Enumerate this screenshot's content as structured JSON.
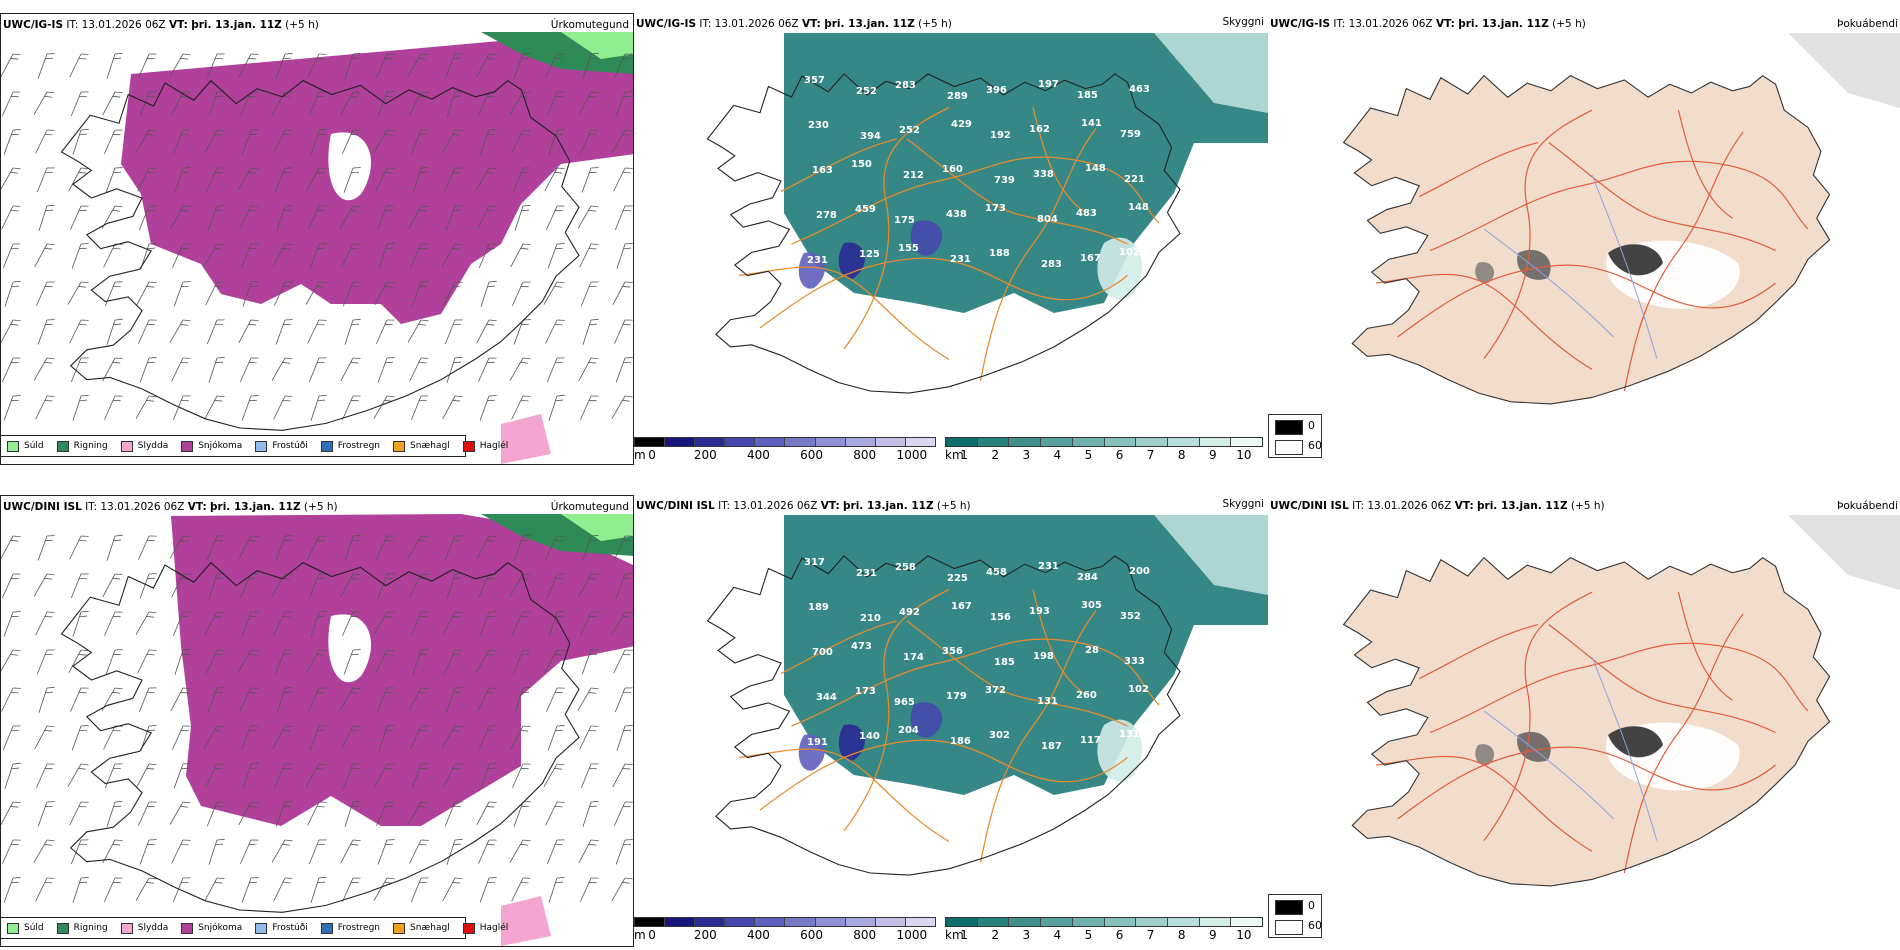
{
  "rows": [
    {
      "model": "UWC/IG-IS",
      "it_label": "IT:",
      "it_value": "13.01.2026 06Z",
      "vt_label": "VT:",
      "vt_value": "þri. 13.jan. 11Z",
      "offset": "(+5 h)"
    },
    {
      "model": "UWC/DINI ISL",
      "it_label": "IT:",
      "it_value": "13.01.2026 06Z",
      "vt_label": "VT:",
      "vt_value": "þri. 13.jan. 11Z",
      "offset": "(+5 h)"
    }
  ],
  "panel_titles": {
    "precip": "Úrkomutegund",
    "cloud": "Skyggni",
    "fog": "Þokuábendi"
  },
  "precip_legend": [
    {
      "label": "Súld",
      "color": "#90ee90"
    },
    {
      "label": "Rigning",
      "color": "#2e8b57"
    },
    {
      "label": "Slydda",
      "color": "#f4a6d0"
    },
    {
      "label": "Snjókoma",
      "color": "#b0409a"
    },
    {
      "label": "Frostúði",
      "color": "#8fbce8"
    },
    {
      "label": "Frostregn",
      "color": "#2f6fb5"
    },
    {
      "label": "Snæhagl",
      "color": "#f0a020"
    },
    {
      "label": "Haglél",
      "color": "#e01010"
    }
  ],
  "ceiling_bar": {
    "unit": "m",
    "ticks": [
      "0",
      "200",
      "400",
      "600",
      "800",
      "1000"
    ],
    "colors": [
      "#000000",
      "#16167a",
      "#2a2a95",
      "#4545ae",
      "#5f5fbd",
      "#7878c8",
      "#9090d2",
      "#a8a8dc",
      "#c0c0e6",
      "#d8d8f0"
    ]
  },
  "visibility_bar": {
    "unit": "km",
    "ticks": [
      "1",
      "2",
      "3",
      "4",
      "5",
      "6",
      "7",
      "8",
      "9",
      "10"
    ],
    "colors": [
      "#0b6e6a",
      "#2a827e",
      "#3f918c",
      "#56a19c",
      "#6fb1ac",
      "#88c0bb",
      "#a1cfca",
      "#badeda",
      "#d3ece9",
      "#ecf7f6"
    ]
  },
  "fog_legend": {
    "items": [
      {
        "label": "0",
        "color": "#000000"
      },
      {
        "label": "60",
        "color": "#ffffff"
      }
    ]
  },
  "labels": [
    [
      "357",
      "252",
      "283",
      "289",
      "396",
      "197",
      "185",
      "463",
      "230",
      "394",
      "252",
      "429",
      "192",
      "162",
      "141",
      "759",
      "163",
      "150",
      "212",
      "160",
      "739",
      "338",
      "148",
      "221",
      "278",
      "459",
      "175",
      "438",
      "173",
      "804",
      "483",
      "148",
      "231",
      "125",
      "155",
      "231",
      "188",
      "283",
      "167",
      "102"
    ],
    [
      "317",
      "231",
      "258",
      "225",
      "458",
      "231",
      "284",
      "200",
      "189",
      "210",
      "492",
      "167",
      "156",
      "193",
      "305",
      "352",
      "700",
      "473",
      "174",
      "356",
      "185",
      "198",
      "28",
      "333",
      "344",
      "173",
      "965",
      "179",
      "372",
      "131",
      "260",
      "102",
      "191",
      "140",
      "204",
      "186",
      "302",
      "187",
      "117",
      "131"
    ]
  ]
}
